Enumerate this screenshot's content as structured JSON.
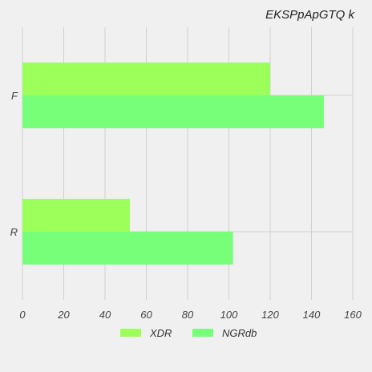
{
  "chart_data": {
    "type": "bar",
    "orientation": "horizontal",
    "title": "EKSPpApGTQ k",
    "categories": [
      "F",
      "R"
    ],
    "series": [
      {
        "name": "XDR",
        "values": [
          120,
          52
        ],
        "color": "#9dff5a"
      },
      {
        "name": "NGRdb",
        "values": [
          146,
          102
        ],
        "color": "#77ff7a"
      }
    ],
    "xlim": [
      0,
      160
    ],
    "x_ticks": [
      0,
      20,
      40,
      60,
      80,
      100,
      120,
      140,
      160
    ],
    "grid": true,
    "legend_position": "bottom"
  }
}
